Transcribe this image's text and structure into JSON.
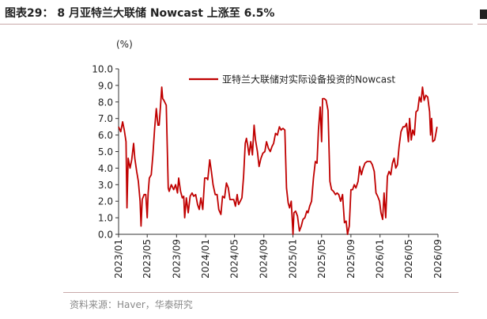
{
  "header": {
    "title": "图表29： 8 月亚特兰大联储 Nowcast 上涨至 6.5%"
  },
  "footer": {
    "source": "资料来源：Haver，华泰研究"
  },
  "chart_data": {
    "type": "line",
    "title": "",
    "xlabel": "",
    "ylabel": "(%)",
    "ylim": [
      0,
      10
    ],
    "yticks": [
      "0.0",
      "1.0",
      "2.0",
      "3.0",
      "4.0",
      "5.0",
      "6.0",
      "7.0",
      "8.0",
      "9.0",
      "10.0"
    ],
    "xticks": [
      "2023/01",
      "2023/05",
      "2023/09",
      "2024/01",
      "2024/05",
      "2024/09",
      "2025/01",
      "2025/05",
      "2025/09",
      "2026/01",
      "2026/05",
      "2026/09"
    ],
    "legend_position": "top-right",
    "color": "#c00000",
    "series": [
      {
        "name": "亚特兰大联储对实际设备投资的Nowcast",
        "points": [
          [
            "2023/01",
            6.5
          ],
          [
            "2023/01/10",
            6.2
          ],
          [
            "2023/01/18",
            6.8
          ],
          [
            "2023/01/25",
            6.3
          ],
          [
            "2023/02/01",
            5.6
          ],
          [
            "2023/02/05",
            1.6
          ],
          [
            "2023/02/10",
            4.6
          ],
          [
            "2023/02/18",
            4.0
          ],
          [
            "2023/02/25",
            4.5
          ],
          [
            "2023/03/05",
            5.5
          ],
          [
            "2023/03/10",
            4.6
          ],
          [
            "2023/03/18",
            3.8
          ],
          [
            "2023/03/25",
            3.2
          ],
          [
            "2023/04/01",
            2.0
          ],
          [
            "2023/04/05",
            0.5
          ],
          [
            "2023/04/10",
            2.1
          ],
          [
            "2023/04/18",
            2.4
          ],
          [
            "2023/04/25",
            2.4
          ],
          [
            "2023/05/01",
            1.0
          ],
          [
            "2023/05/05",
            2.5
          ],
          [
            "2023/05/10",
            3.4
          ],
          [
            "2023/05/18",
            3.6
          ],
          [
            "2023/05/25",
            4.8
          ],
          [
            "2023/06/01",
            6.4
          ],
          [
            "2023/06/08",
            7.6
          ],
          [
            "2023/06/15",
            6.6
          ],
          [
            "2023/06/20",
            6.6
          ],
          [
            "2023/06/25",
            7.6
          ],
          [
            "2023/07/01",
            8.9
          ],
          [
            "2023/07/05",
            8.2
          ],
          [
            "2023/07/10",
            8.1
          ],
          [
            "2023/07/20",
            7.8
          ],
          [
            "2023/07/28",
            2.8
          ],
          [
            "2023/08/01",
            2.6
          ],
          [
            "2023/08/10",
            3.0
          ],
          [
            "2023/08/20",
            2.7
          ],
          [
            "2023/08/28",
            3.0
          ],
          [
            "2023/09/05",
            2.5
          ],
          [
            "2023/09/10",
            3.4
          ],
          [
            "2023/09/18",
            2.6
          ],
          [
            "2023/09/25",
            2.2
          ],
          [
            "2023/10/01",
            2.3
          ],
          [
            "2023/10/05",
            1.0
          ],
          [
            "2023/10/12",
            2.2
          ],
          [
            "2023/10/20",
            1.3
          ],
          [
            "2023/10/28",
            2.3
          ],
          [
            "2023/11/05",
            2.5
          ],
          [
            "2023/11/12",
            2.3
          ],
          [
            "2023/11/20",
            2.4
          ],
          [
            "2023/11/28",
            1.8
          ],
          [
            "2023/12/05",
            1.5
          ],
          [
            "2023/12/12",
            2.2
          ],
          [
            "2023/12/20",
            1.5
          ],
          [
            "2023/12/28",
            3.4
          ],
          [
            "2024/01/05",
            3.4
          ],
          [
            "2024/01/10",
            3.3
          ],
          [
            "2024/01/18",
            4.5
          ],
          [
            "2024/01/25",
            3.8
          ],
          [
            "2024/02/01",
            3.0
          ],
          [
            "2024/02/10",
            2.4
          ],
          [
            "2024/02/18",
            2.4
          ],
          [
            "2024/02/25",
            1.5
          ],
          [
            "2024/03/05",
            1.2
          ],
          [
            "2024/03/12",
            2.3
          ],
          [
            "2024/03/20",
            2.2
          ],
          [
            "2024/03/28",
            3.1
          ],
          [
            "2024/04/05",
            2.8
          ],
          [
            "2024/04/12",
            2.1
          ],
          [
            "2024/04/20",
            2.1
          ],
          [
            "2024/04/28",
            2.1
          ],
          [
            "2024/05/05",
            1.7
          ],
          [
            "2024/05/12",
            2.4
          ],
          [
            "2024/05/18",
            1.8
          ],
          [
            "2024/05/25",
            2.0
          ],
          [
            "2024/06/01",
            2.2
          ],
          [
            "2024/06/08",
            3.5
          ],
          [
            "2024/06/15",
            5.5
          ],
          [
            "2024/06/20",
            5.8
          ],
          [
            "2024/06/25",
            5.4
          ],
          [
            "2024/07/01",
            4.8
          ],
          [
            "2024/07/08",
            5.6
          ],
          [
            "2024/07/15",
            4.8
          ],
          [
            "2024/07/22",
            6.6
          ],
          [
            "2024/07/28",
            5.7
          ],
          [
            "2024/08/05",
            5.0
          ],
          [
            "2024/08/12",
            4.1
          ],
          [
            "2024/08/20",
            4.6
          ],
          [
            "2024/08/28",
            4.9
          ],
          [
            "2024/09/05",
            5.0
          ],
          [
            "2024/09/12",
            5.6
          ],
          [
            "2024/09/20",
            5.2
          ],
          [
            "2024/09/28",
            5.0
          ],
          [
            "2024/10/05",
            5.3
          ],
          [
            "2024/10/12",
            5.5
          ],
          [
            "2024/10/20",
            6.1
          ],
          [
            "2024/10/28",
            6.0
          ],
          [
            "2024/11/05",
            6.5
          ],
          [
            "2024/11/12",
            6.3
          ],
          [
            "2024/11/20",
            6.4
          ],
          [
            "2024/11/28",
            6.3
          ],
          [
            "2024/12/05",
            2.8
          ],
          [
            "2024/12/12",
            1.9
          ],
          [
            "2024/12/18",
            1.6
          ],
          [
            "2024/12/25",
            2.0
          ],
          [
            "2025/01/01",
            0.0
          ],
          [
            "2025/01/05",
            1.3
          ],
          [
            "2025/01/12",
            1.4
          ],
          [
            "2025/01/20",
            1.1
          ],
          [
            "2025/01/28",
            0.2
          ],
          [
            "2025/02/05",
            0.5
          ],
          [
            "2025/02/12",
            0.9
          ],
          [
            "2025/02/20",
            1.0
          ],
          [
            "2025/02/28",
            1.4
          ],
          [
            "2025/03/05",
            1.3
          ],
          [
            "2025/03/12",
            1.7
          ],
          [
            "2025/03/20",
            2.0
          ],
          [
            "2025/03/28",
            3.4
          ],
          [
            "2025/04/05",
            4.4
          ],
          [
            "2025/04/12",
            4.3
          ],
          [
            "2025/04/18",
            6.3
          ],
          [
            "2025/04/25",
            7.7
          ],
          [
            "2025/05/01",
            5.6
          ],
          [
            "2025/05/05",
            8.2
          ],
          [
            "2025/05/12",
            8.2
          ],
          [
            "2025/05/20",
            8.1
          ],
          [
            "2025/05/28",
            7.5
          ],
          [
            "2025/06/05",
            3.2
          ],
          [
            "2025/06/12",
            2.7
          ],
          [
            "2025/06/20",
            2.6
          ],
          [
            "2025/06/28",
            2.4
          ],
          [
            "2025/07/05",
            2.5
          ],
          [
            "2025/07/12",
            2.4
          ],
          [
            "2025/07/20",
            2.0
          ],
          [
            "2025/07/28",
            2.4
          ],
          [
            "2025/08/05",
            0.7
          ],
          [
            "2025/08/12",
            0.8
          ],
          [
            "2025/08/18",
            0.0
          ],
          [
            "2025/08/25",
            0.5
          ],
          [
            "2025/09/01",
            2.7
          ],
          [
            "2025/09/08",
            2.7
          ],
          [
            "2025/09/15",
            3.0
          ],
          [
            "2025/09/22",
            2.8
          ],
          [
            "2025/10/01",
            3.2
          ],
          [
            "2025/10/08",
            4.1
          ],
          [
            "2025/10/15",
            3.6
          ],
          [
            "2025/10/22",
            4.0
          ],
          [
            "2025/10/30",
            4.3
          ],
          [
            "2025/11/08",
            4.4
          ],
          [
            "2025/11/15",
            4.4
          ],
          [
            "2025/11/22",
            4.4
          ],
          [
            "2025/11/30",
            4.2
          ],
          [
            "2025/12/08",
            3.8
          ],
          [
            "2025/12/15",
            2.5
          ],
          [
            "2025/12/22",
            2.3
          ],
          [
            "2025/12/30",
            2.0
          ],
          [
            "2026/01/05",
            1.3
          ],
          [
            "2026/01/12",
            0.9
          ],
          [
            "2026/01/18",
            2.5
          ],
          [
            "2026/01/25",
            1.0
          ],
          [
            "2026/02/01",
            3.5
          ],
          [
            "2026/02/08",
            3.8
          ],
          [
            "2026/02/15",
            3.6
          ],
          [
            "2026/02/22",
            4.3
          ],
          [
            "2026/03/01",
            4.6
          ],
          [
            "2026/03/08",
            4.0
          ],
          [
            "2026/03/15",
            4.2
          ],
          [
            "2026/03/22",
            5.3
          ],
          [
            "2026/03/30",
            6.2
          ],
          [
            "2026/04/08",
            6.5
          ],
          [
            "2026/04/15",
            6.5
          ],
          [
            "2026/04/22",
            6.7
          ],
          [
            "2026/04/30",
            5.6
          ],
          [
            "2026/05/05",
            7.0
          ],
          [
            "2026/05/12",
            5.7
          ],
          [
            "2026/05/18",
            6.3
          ],
          [
            "2026/05/25",
            6.0
          ],
          [
            "2026/06/01",
            7.4
          ],
          [
            "2026/06/08",
            7.5
          ],
          [
            "2026/06/15",
            8.3
          ],
          [
            "2026/06/22",
            8.0
          ],
          [
            "2026/06/28",
            8.9
          ],
          [
            "2026/07/05",
            8.1
          ],
          [
            "2026/07/12",
            8.4
          ],
          [
            "2026/07/20",
            8.3
          ],
          [
            "2026/07/28",
            7.4
          ],
          [
            "2026/08/01",
            6.0
          ],
          [
            "2026/08/05",
            7.0
          ],
          [
            "2026/08/10",
            5.6
          ],
          [
            "2026/08/18",
            5.7
          ],
          [
            "2026/08/22",
            6.0
          ],
          [
            "2026/08/28",
            6.5
          ]
        ]
      }
    ]
  }
}
